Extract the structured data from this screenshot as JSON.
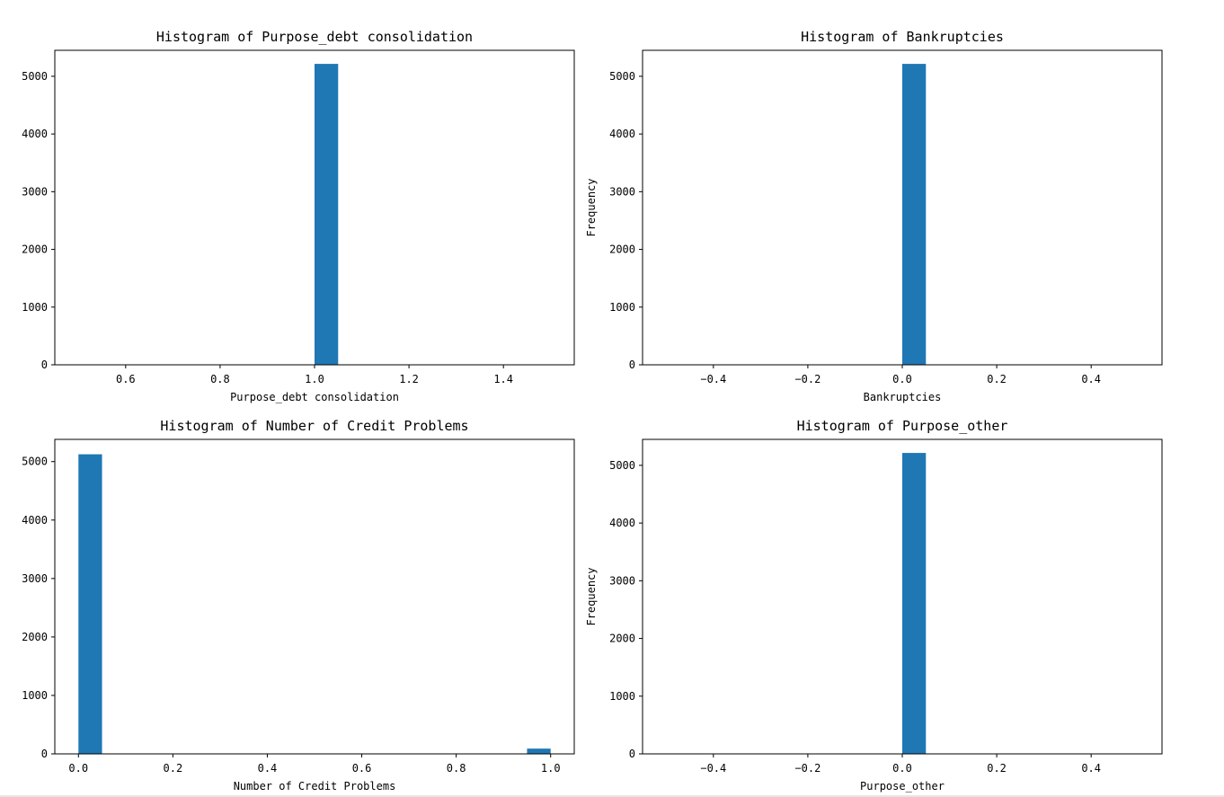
{
  "chart_data": [
    {
      "type": "bar",
      "title": "Histogram of Purpose_debt consolidation",
      "xlabel": "Purpose_debt consolidation",
      "ylabel": "",
      "xlim": [
        0.45,
        1.55
      ],
      "ylim": [
        0,
        5450
      ],
      "xticks": [
        0.6,
        0.8,
        1.0,
        1.2,
        1.4
      ],
      "xtick_labels": [
        "0.6",
        "0.8",
        "1.0",
        "1.2",
        "1.4"
      ],
      "yticks": [
        0,
        1000,
        2000,
        3000,
        4000,
        5000
      ],
      "ytick_labels": [
        "0",
        "1000",
        "2000",
        "3000",
        "4000",
        "5000"
      ],
      "bars": [
        {
          "x0": 1.0,
          "x1": 1.05,
          "value": 5215
        }
      ],
      "color": "#1f77b4",
      "grid": false
    },
    {
      "type": "bar",
      "title": "Histogram of Bankruptcies",
      "xlabel": "Bankruptcies",
      "ylabel": "Frequency",
      "xlim": [
        -0.55,
        0.55
      ],
      "ylim": [
        0,
        5450
      ],
      "xticks": [
        -0.4,
        -0.2,
        0.0,
        0.2,
        0.4
      ],
      "xtick_labels": [
        "−0.4",
        "−0.2",
        "0.0",
        "0.2",
        "0.4"
      ],
      "yticks": [
        0,
        1000,
        2000,
        3000,
        4000,
        5000
      ],
      "ytick_labels": [
        "0",
        "1000",
        "2000",
        "3000",
        "4000",
        "5000"
      ],
      "bars": [
        {
          "x0": 0.0,
          "x1": 0.05,
          "value": 5215
        }
      ],
      "color": "#1f77b4",
      "grid": false
    },
    {
      "type": "bar",
      "title": "Histogram of Number of Credit Problems",
      "xlabel": "Number of Credit Problems",
      "ylabel": "",
      "xlim": [
        -0.05,
        1.05
      ],
      "ylim": [
        0,
        5380
      ],
      "xticks": [
        0.0,
        0.2,
        0.4,
        0.6,
        0.8,
        1.0
      ],
      "xtick_labels": [
        "0.0",
        "0.2",
        "0.4",
        "0.6",
        "0.8",
        "1.0"
      ],
      "yticks": [
        0,
        1000,
        2000,
        3000,
        4000,
        5000
      ],
      "ytick_labels": [
        "0",
        "1000",
        "2000",
        "3000",
        "4000",
        "5000"
      ],
      "bars": [
        {
          "x0": 0.0,
          "x1": 0.05,
          "value": 5125
        },
        {
          "x0": 0.95,
          "x1": 1.0,
          "value": 90
        }
      ],
      "color": "#1f77b4",
      "grid": false
    },
    {
      "type": "bar",
      "title": "Histogram of Purpose_other",
      "xlabel": "Purpose_other",
      "ylabel": "Frequency",
      "xlim": [
        -0.55,
        0.55
      ],
      "ylim": [
        0,
        5450
      ],
      "xticks": [
        -0.4,
        -0.2,
        0.0,
        0.2,
        0.4
      ],
      "xtick_labels": [
        "−0.4",
        "−0.2",
        "0.0",
        "0.2",
        "0.4"
      ],
      "yticks": [
        0,
        1000,
        2000,
        3000,
        4000,
        5000
      ],
      "ytick_labels": [
        "0",
        "1000",
        "2000",
        "3000",
        "4000",
        "5000"
      ],
      "bars": [
        {
          "x0": 0.0,
          "x1": 0.05,
          "value": 5215
        }
      ],
      "color": "#1f77b4",
      "grid": false
    }
  ]
}
